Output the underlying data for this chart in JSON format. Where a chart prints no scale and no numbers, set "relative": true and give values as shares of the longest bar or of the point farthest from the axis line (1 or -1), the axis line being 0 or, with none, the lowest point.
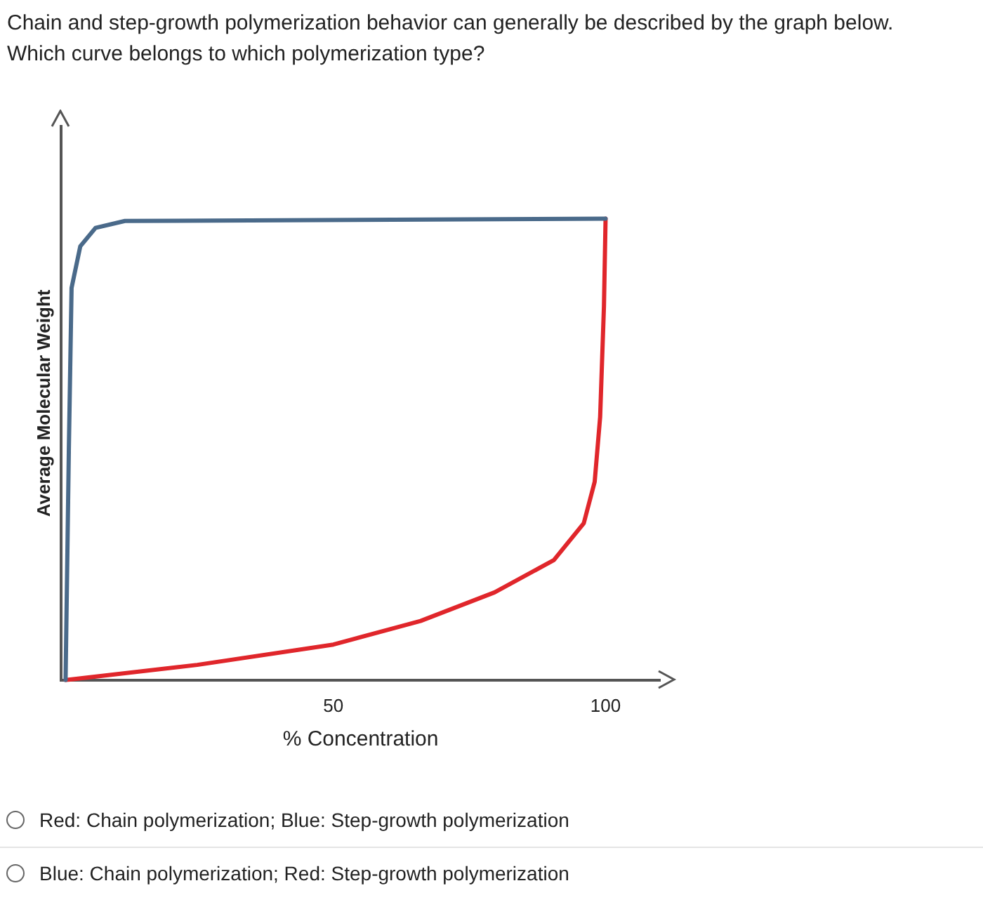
{
  "chart_data": {
    "type": "line",
    "title": "Chain and step-growth polymerization behavior can generally be described by the graph below. Which curve belongs to which polymerization type?",
    "xlabel": "% Concentration",
    "ylabel": "Average Molecular Weight",
    "relative": true,
    "xlim": [
      0,
      110
    ],
    "xticks": [
      50,
      100
    ],
    "grid": false,
    "legend": false,
    "marker": "none",
    "line_style": "solid",
    "series": [
      {
        "color": "#4a6a8a",
        "x": [
          0.8,
          1.4,
          1.9,
          3.5,
          6.3,
          11.7,
          100
        ],
        "values": [
          0,
          0.5,
          0.85,
          0.94,
          0.98,
          0.995,
          1
        ]
      },
      {
        "color": "#e0262b",
        "x": [
          0.8,
          25,
          50,
          66,
          79.6,
          90.5,
          96,
          98,
          99,
          99.7,
          100
        ],
        "values": [
          0,
          0.033,
          0.077,
          0.128,
          0.19,
          0.26,
          0.34,
          0.43,
          0.57,
          0.81,
          1
        ]
      }
    ],
    "annotations": [
      "Red: Chain polymerization; Blue: Step-growth polymerization",
      "Blue: Chain polymerization; Red: Step-growth polymerization"
    ]
  }
}
